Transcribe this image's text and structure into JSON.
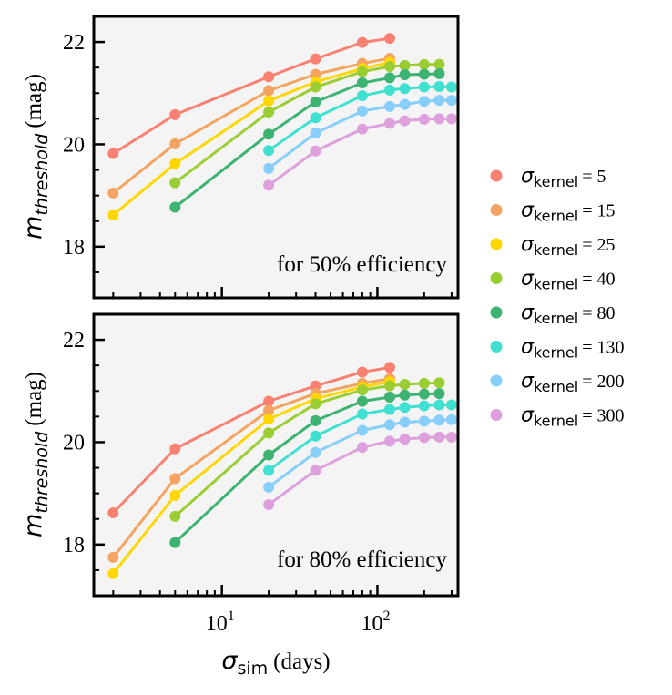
{
  "chart_data": [
    {
      "type": "line",
      "panel": "top",
      "annotation": "for 50% efficiency",
      "ylabel": {
        "symbol": "m",
        "subscript": "threshold",
        "unit": "(mag)"
      },
      "xscale": "log",
      "xlim": [
        1.5,
        330
      ],
      "ylim": [
        17,
        22.5
      ],
      "yticks": [
        18,
        20,
        22
      ],
      "series": [
        {
          "name": "σkernel = 5",
          "color": "#fa8072",
          "x": [
            2,
            5,
            20,
            40,
            80,
            120
          ],
          "y": [
            19.82,
            20.58,
            21.32,
            21.67,
            21.99,
            22.07
          ]
        },
        {
          "name": "σkernel = 15",
          "color": "#f4a460",
          "x": [
            2,
            5,
            20,
            40,
            80,
            120
          ],
          "y": [
            19.05,
            20.01,
            21.05,
            21.37,
            21.58,
            21.68
          ]
        },
        {
          "name": "σkernel = 25",
          "color": "#ffd700",
          "x": [
            2,
            5,
            20,
            40,
            80,
            120
          ],
          "y": [
            18.62,
            19.62,
            20.85,
            21.22,
            21.48,
            21.6
          ]
        },
        {
          "name": "σkernel = 40",
          "color": "#9acd32",
          "x": [
            5,
            20,
            40,
            80,
            120,
            150,
            200,
            250
          ],
          "y": [
            19.25,
            20.63,
            21.12,
            21.42,
            21.52,
            21.54,
            21.56,
            21.56
          ]
        },
        {
          "name": "σkernel = 80",
          "color": "#3cb371",
          "x": [
            5,
            20,
            40,
            80,
            120,
            150,
            200,
            250
          ],
          "y": [
            18.77,
            20.2,
            20.83,
            21.2,
            21.3,
            21.36,
            21.37,
            21.38
          ]
        },
        {
          "name": "σkernel = 130",
          "color": "#40e0d0",
          "x": [
            20,
            40,
            80,
            120,
            150,
            200,
            250,
            300
          ],
          "y": [
            19.88,
            20.52,
            20.95,
            21.06,
            21.09,
            21.12,
            21.13,
            21.12
          ]
        },
        {
          "name": "σkernel = 200",
          "color": "#87cefa",
          "x": [
            20,
            40,
            80,
            120,
            150,
            200,
            250,
            300
          ],
          "y": [
            19.53,
            20.22,
            20.65,
            20.74,
            20.78,
            20.84,
            20.86,
            20.86
          ]
        },
        {
          "name": "σkernel = 300",
          "color": "#dda0dd",
          "x": [
            20,
            40,
            80,
            120,
            150,
            200,
            250,
            300
          ],
          "y": [
            19.2,
            19.87,
            20.3,
            20.41,
            20.46,
            20.49,
            20.5,
            20.5
          ]
        }
      ]
    },
    {
      "type": "line",
      "panel": "bottom",
      "annotation": "for 80% efficiency",
      "ylabel": {
        "symbol": "m",
        "subscript": "threshold",
        "unit": "(mag)"
      },
      "xlabel": {
        "symbol": "σ",
        "subscript": "sim",
        "unit": "(days)"
      },
      "xscale": "log",
      "xlim": [
        1.5,
        330
      ],
      "ylim": [
        17,
        22.5
      ],
      "yticks": [
        18,
        20,
        22
      ],
      "xticks": [
        {
          "value": 10,
          "base": "10",
          "exp": "1"
        },
        {
          "value": 100,
          "base": "10",
          "exp": "2"
        }
      ],
      "series": [
        {
          "name": "σkernel = 5",
          "color": "#fa8072",
          "x": [
            2,
            5,
            20,
            40,
            80,
            120
          ],
          "y": [
            18.62,
            19.87,
            20.8,
            21.1,
            21.37,
            21.46
          ]
        },
        {
          "name": "σkernel = 15",
          "color": "#f4a460",
          "x": [
            2,
            5,
            20,
            40,
            80,
            120
          ],
          "y": [
            17.75,
            19.29,
            20.62,
            20.95,
            21.15,
            21.24
          ]
        },
        {
          "name": "σkernel = 25",
          "color": "#ffd700",
          "x": [
            2,
            5,
            20,
            40,
            80,
            120
          ],
          "y": [
            17.43,
            18.96,
            20.45,
            20.85,
            21.08,
            21.18
          ]
        },
        {
          "name": "σkernel = 40",
          "color": "#9acd32",
          "x": [
            5,
            20,
            40,
            80,
            120,
            150,
            200,
            250
          ],
          "y": [
            18.55,
            20.18,
            20.75,
            21.02,
            21.1,
            21.13,
            21.15,
            21.16
          ]
        },
        {
          "name": "σkernel = 80",
          "color": "#3cb371",
          "x": [
            5,
            20,
            40,
            80,
            120,
            150,
            200,
            250
          ],
          "y": [
            18.04,
            19.75,
            20.42,
            20.8,
            20.88,
            20.92,
            20.94,
            20.95
          ]
        },
        {
          "name": "σkernel = 130",
          "color": "#40e0d0",
          "x": [
            20,
            40,
            80,
            120,
            150,
            200,
            250,
            300
          ],
          "y": [
            19.45,
            20.12,
            20.55,
            20.64,
            20.68,
            20.71,
            20.73,
            20.73
          ]
        },
        {
          "name": "σkernel = 200",
          "color": "#87cefa",
          "x": [
            20,
            40,
            80,
            120,
            150,
            200,
            250,
            300
          ],
          "y": [
            19.12,
            19.8,
            20.23,
            20.34,
            20.39,
            20.41,
            20.43,
            20.44
          ]
        },
        {
          "name": "σkernel = 300",
          "color": "#dda0dd",
          "x": [
            20,
            40,
            80,
            120,
            150,
            200,
            250,
            300
          ],
          "y": [
            18.78,
            19.45,
            19.9,
            20.02,
            20.06,
            20.09,
            20.1,
            20.1
          ]
        }
      ]
    }
  ],
  "legend": {
    "placement": "right",
    "items": [
      {
        "symbol": "σ",
        "sub": "kernel",
        "value": "= 5",
        "color": "#fa8072"
      },
      {
        "symbol": "σ",
        "sub": "kernel",
        "value": "= 15",
        "color": "#f4a460"
      },
      {
        "symbol": "σ",
        "sub": "kernel",
        "value": "= 25",
        "color": "#ffd700"
      },
      {
        "symbol": "σ",
        "sub": "kernel",
        "value": "= 40",
        "color": "#9acd32"
      },
      {
        "symbol": "σ",
        "sub": "kernel",
        "value": "= 80",
        "color": "#3cb371"
      },
      {
        "symbol": "σ",
        "sub": "kernel",
        "value": "= 130",
        "color": "#40e0d0"
      },
      {
        "symbol": "σ",
        "sub": "kernel",
        "value": "= 200",
        "color": "#87cefa"
      },
      {
        "symbol": "σ",
        "sub": "kernel",
        "value": "= 300",
        "color": "#dda0dd"
      }
    ]
  }
}
